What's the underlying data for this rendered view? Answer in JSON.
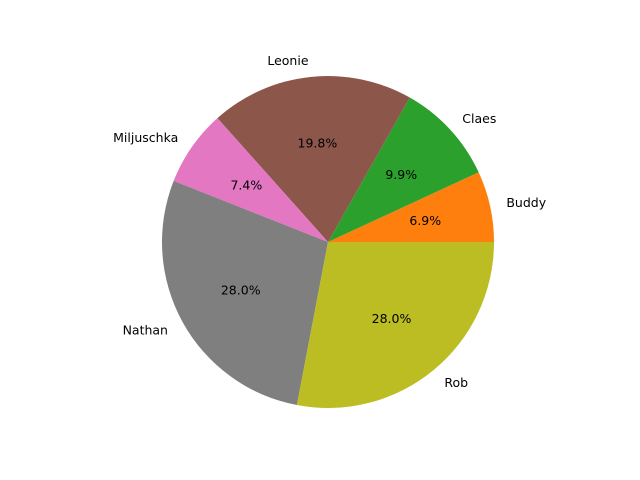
{
  "chart_data": {
    "type": "pie",
    "title": "",
    "start_angle_deg": 0,
    "direction": "counterclockwise",
    "categories": [
      "Buddy",
      "Claes",
      "Leonie",
      "Miljuschka",
      "Nathan",
      "Rob"
    ],
    "values": [
      6.9,
      9.9,
      19.8,
      7.4,
      28.0,
      28.0
    ],
    "percent_labels": [
      "6.9%",
      "9.9%",
      "19.8%",
      "7.4%",
      "28.0%",
      "28.0%"
    ],
    "colors": [
      "#ff7f0e",
      "#2ca02c",
      "#8c564b",
      "#e377c2",
      "#7f7f7f",
      "#bcbd22"
    ],
    "legend": "none",
    "grid": false
  }
}
